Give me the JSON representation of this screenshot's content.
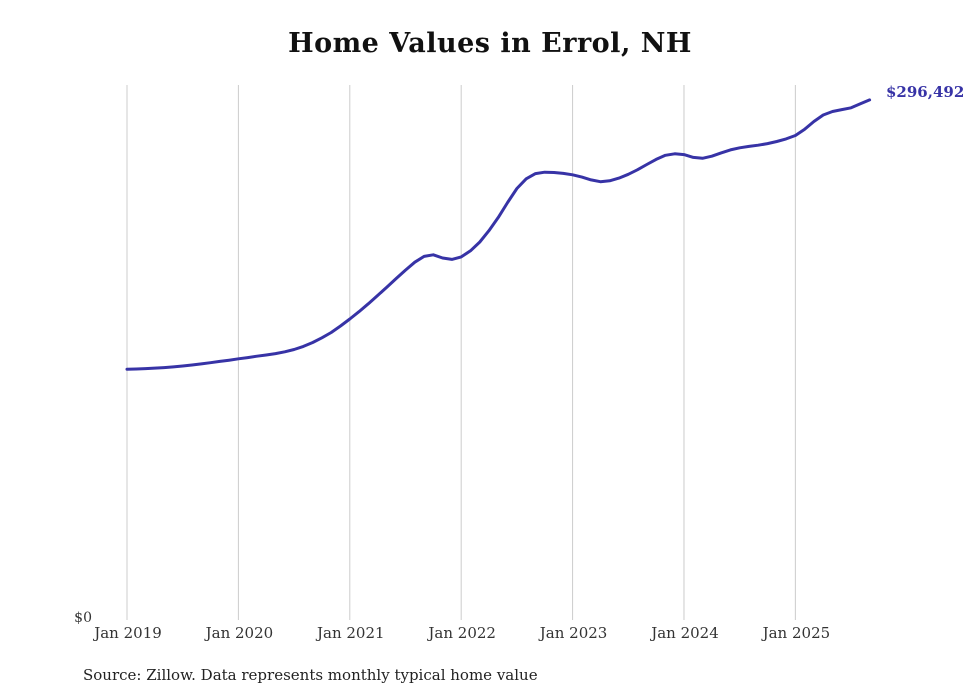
{
  "title": "Home Values in Errol, NH",
  "source_note": "Source: Zillow. Data represents monthly typical home value",
  "y_zero_label": "$0",
  "end_label": "$296,492",
  "colors": {
    "line": "#3733a6",
    "grid": "#cccccc",
    "title_text": "#111111",
    "tick_text": "#333333"
  },
  "chart_data": {
    "type": "line",
    "title": "Home Values in Errol, NH",
    "xlabel": "",
    "ylabel": "",
    "x_start": "2019-01",
    "x_end": "2025-09",
    "interval": "monthly",
    "ylim": [
      0,
      305000
    ],
    "grid": "vertical-only",
    "legend": "none",
    "x_tick_labels": [
      "Jan 2019",
      "Jan 2020",
      "Jan 2021",
      "Jan 2022",
      "Jan 2023",
      "Jan 2024",
      "Jan 2025"
    ],
    "final_value": 296492,
    "final_value_label": "$296,492",
    "series": [
      {
        "name": "Typical home value",
        "values": [
          143000,
          143100,
          143300,
          143600,
          143900,
          144300,
          144800,
          145400,
          146000,
          146700,
          147400,
          148100,
          148900,
          149600,
          150400,
          151100,
          151900,
          152900,
          154200,
          156000,
          158200,
          160900,
          163900,
          167600,
          171600,
          175800,
          180300,
          185000,
          189800,
          194700,
          199500,
          204000,
          207300,
          208200,
          206400,
          205600,
          207000,
          210500,
          215500,
          222000,
          229500,
          238000,
          246000,
          251500,
          254500,
          255300,
          255100,
          254600,
          253800,
          252500,
          250900,
          249900,
          250400,
          251900,
          254100,
          256700,
          259700,
          262600,
          264900,
          265800,
          265300,
          263700,
          263200,
          264400,
          266300,
          268000,
          269200,
          270000,
          270700,
          271600,
          272800,
          274300,
          276200,
          279800,
          284200,
          287900,
          289900,
          291000,
          292000,
          294300,
          296492
        ]
      }
    ]
  }
}
